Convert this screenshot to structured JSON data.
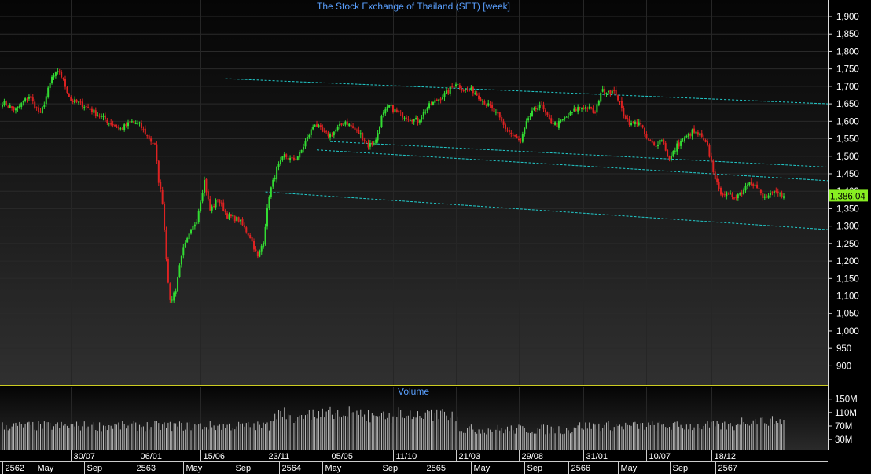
{
  "chart_data": {
    "type": "candlestick",
    "title": "The Stock Exchange of Thailand (SET) [week]",
    "price_axis": {
      "ticks": [
        "1,900",
        "1,850",
        "1,800",
        "1,750",
        "1,700",
        "1,650",
        "1,600",
        "1,550",
        "1,500",
        "1,450",
        "1,400",
        "1,350",
        "1,300",
        "1,250",
        "1,200",
        "1,150",
        "1,100",
        "1,050",
        "1,000",
        "950",
        "900"
      ],
      "ylim": [
        855,
        1925
      ]
    },
    "last_value": "1,386.04",
    "last_value_num": 1386.04,
    "colors": {
      "up": "#33dd33",
      "down": "#dd2222",
      "trendline": "#22cccc",
      "last_badge": "#88ee22",
      "title": "#5aa0ff",
      "volume": "#bbbbbb"
    },
    "trendlines": [
      {
        "name": "upper-channel",
        "from": {
          "idx": 117,
          "y": 1722
        },
        "to": {
          "idx": 417,
          "y": 1650
        }
      },
      {
        "name": "mid-channel-a",
        "from": {
          "idx": 172,
          "y": 1542
        },
        "to": {
          "idx": 417,
          "y": 1469
        }
      },
      {
        "name": "mid-channel-b",
        "from": {
          "idx": 165,
          "y": 1518
        },
        "to": {
          "idx": 417,
          "y": 1430
        }
      },
      {
        "name": "lower-channel",
        "from": {
          "idx": 138,
          "y": 1398
        },
        "to": {
          "idx": 417,
          "y": 1290
        }
      }
    ],
    "price_anchors": [
      [
        0,
        1655
      ],
      [
        7,
        1632
      ],
      [
        14,
        1672
      ],
      [
        20,
        1618
      ],
      [
        26,
        1725
      ],
      [
        30,
        1742
      ],
      [
        36,
        1660
      ],
      [
        42,
        1648
      ],
      [
        50,
        1620
      ],
      [
        56,
        1597
      ],
      [
        62,
        1578
      ],
      [
        68,
        1598
      ],
      [
        72,
        1590
      ],
      [
        76,
        1558
      ],
      [
        80,
        1530
      ],
      [
        82,
        1430
      ],
      [
        84,
        1370
      ],
      [
        86,
        1210
      ],
      [
        88,
        1080
      ],
      [
        91,
        1120
      ],
      [
        94,
        1220
      ],
      [
        98,
        1272
      ],
      [
        102,
        1320
      ],
      [
        106,
        1430
      ],
      [
        109,
        1345
      ],
      [
        113,
        1378
      ],
      [
        118,
        1330
      ],
      [
        124,
        1318
      ],
      [
        130,
        1270
      ],
      [
        134,
        1210
      ],
      [
        137,
        1260
      ],
      [
        140,
        1390
      ],
      [
        144,
        1462
      ],
      [
        148,
        1502
      ],
      [
        152,
        1488
      ],
      [
        156,
        1505
      ],
      [
        160,
        1552
      ],
      [
        164,
        1595
      ],
      [
        168,
        1568
      ],
      [
        172,
        1560
      ],
      [
        176,
        1580
      ],
      [
        180,
        1600
      ],
      [
        184,
        1580
      ],
      [
        188,
        1562
      ],
      [
        192,
        1530
      ],
      [
        196,
        1545
      ],
      [
        199,
        1612
      ],
      [
        203,
        1643
      ],
      [
        208,
        1622
      ],
      [
        213,
        1612
      ],
      [
        218,
        1600
      ],
      [
        223,
        1640
      ],
      [
        228,
        1660
      ],
      [
        233,
        1680
      ],
      [
        238,
        1710
      ],
      [
        242,
        1690
      ],
      [
        247,
        1688
      ],
      [
        252,
        1660
      ],
      [
        256,
        1640
      ],
      [
        260,
        1615
      ],
      [
        264,
        1580
      ],
      [
        268,
        1558
      ],
      [
        272,
        1540
      ],
      [
        276,
        1610
      ],
      [
        282,
        1650
      ],
      [
        287,
        1602
      ],
      [
        291,
        1590
      ],
      [
        296,
        1612
      ],
      [
        302,
        1638
      ],
      [
        307,
        1640
      ],
      [
        311,
        1622
      ],
      [
        314,
        1685
      ],
      [
        318,
        1688
      ],
      [
        322,
        1680
      ],
      [
        326,
        1620
      ],
      [
        330,
        1590
      ],
      [
        334,
        1600
      ],
      [
        338,
        1550
      ],
      [
        342,
        1530
      ],
      [
        346,
        1550
      ],
      [
        350,
        1490
      ],
      [
        354,
        1530
      ],
      [
        358,
        1550
      ],
      [
        362,
        1570
      ],
      [
        366,
        1560
      ],
      [
        370,
        1525
      ],
      [
        373,
        1460
      ],
      [
        376,
        1400
      ],
      [
        380,
        1390
      ],
      [
        384,
        1385
      ],
      [
        388,
        1398
      ],
      [
        392,
        1432
      ],
      [
        396,
        1410
      ],
      [
        399,
        1380
      ],
      [
        403,
        1388
      ],
      [
        406,
        1395
      ],
      [
        410,
        1386
      ]
    ],
    "volume_axis": {
      "ticks": [
        "150M",
        "110M",
        "70M",
        "30M"
      ],
      "max": 175
    },
    "volume_label": "Volume",
    "date_ticks": [
      {
        "label": "30/07",
        "idx": 36
      },
      {
        "label": "06/01",
        "idx": 71
      },
      {
        "label": "15/06",
        "idx": 104
      },
      {
        "label": "23/11",
        "idx": 138
      },
      {
        "label": "05/05",
        "idx": 171
      },
      {
        "label": "11/10",
        "idx": 205
      },
      {
        "label": "21/03",
        "idx": 238
      },
      {
        "label": "29/08",
        "idx": 271
      },
      {
        "label": "31/01",
        "idx": 305
      },
      {
        "label": "10/07",
        "idx": 338
      },
      {
        "label": "18/12",
        "idx": 372
      }
    ],
    "period_ticks": [
      {
        "label": "2562",
        "idx": 0
      },
      {
        "label": "May",
        "idx": 17
      },
      {
        "label": "Sep",
        "idx": 43
      },
      {
        "label": "2563",
        "idx": 69
      },
      {
        "label": "May",
        "idx": 95
      },
      {
        "label": "Sep",
        "idx": 121
      },
      {
        "label": "2564",
        "idx": 145
      },
      {
        "label": "May",
        "idx": 168
      },
      {
        "label": "Sep",
        "idx": 198
      },
      {
        "label": "2565",
        "idx": 221
      },
      {
        "label": "May",
        "idx": 246
      },
      {
        "label": "Sep",
        "idx": 274
      },
      {
        "label": "2566",
        "idx": 297
      },
      {
        "label": "May",
        "idx": 323
      },
      {
        "label": "Sep",
        "idx": 350
      },
      {
        "label": "2567",
        "idx": 374
      }
    ],
    "num_bars": 411
  }
}
